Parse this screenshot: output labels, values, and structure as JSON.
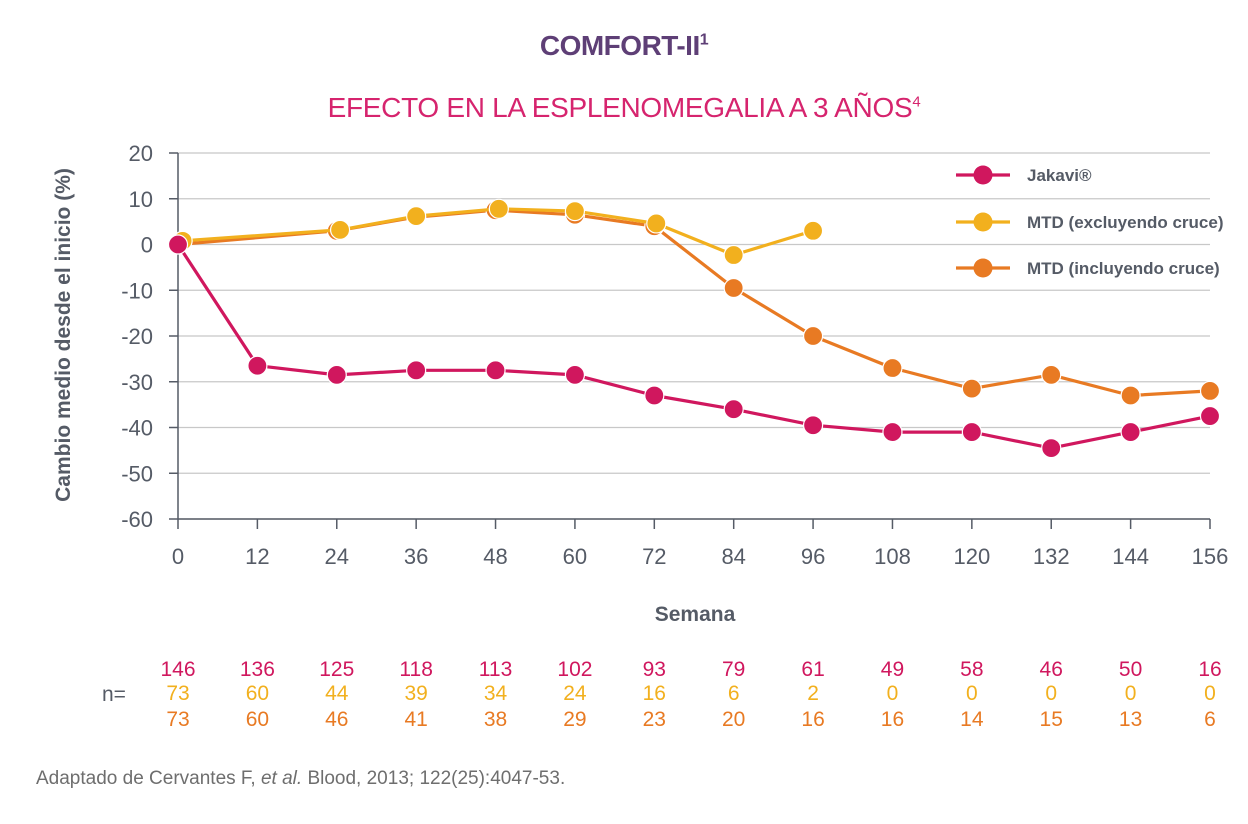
{
  "title": {
    "text": "COMFORT-II",
    "sup": "1"
  },
  "subtitle": {
    "text": "EFECTO EN LA ESPLENOMEGALIA A 3 AÑOS",
    "sup": "4"
  },
  "footnote": {
    "before": "Adaptado de Cervantes F, ",
    "italic": "et al.",
    "after": " Blood, 2013; 122(25):4047-53."
  },
  "n_label": "n=",
  "colors": {
    "jakavi": "#d0175e",
    "excl": "#f2b01e",
    "incl": "#e87a23",
    "axis": "#555b66",
    "grid": "#c8c8c8"
  },
  "chart_data": {
    "type": "line",
    "title": "EFECTO EN LA ESPLENOMEGALIA A 3 AÑOS",
    "xlabel": "Semana",
    "ylabel": "Cambio medio desde el inicio (%)",
    "ylim": [
      -60,
      20
    ],
    "xlim": [
      0,
      156
    ],
    "yticks": [
      "20",
      "10",
      "0",
      "-10",
      "-20",
      "-30",
      "-40",
      "-50",
      "-60"
    ],
    "xticks": [
      "0",
      "12",
      "24",
      "36",
      "48",
      "60",
      "72",
      "84",
      "96",
      "108",
      "120",
      "132",
      "144",
      "156"
    ],
    "legend_position": "top-right",
    "series": [
      {
        "name": "Jakavi®",
        "key": "jakavi",
        "points": [
          [
            0,
            0
          ],
          [
            12,
            -26.5
          ],
          [
            24,
            -28.5
          ],
          [
            36,
            -27.5
          ],
          [
            48,
            -27.5
          ],
          [
            60,
            -28.5
          ],
          [
            72,
            -33
          ],
          [
            84,
            -36
          ],
          [
            96,
            -39.5
          ],
          [
            108,
            -41
          ],
          [
            120,
            -41
          ],
          [
            132,
            -44.5
          ],
          [
            144,
            -41
          ],
          [
            156,
            -37.5
          ]
        ]
      },
      {
        "name": "MTD (excluyendo cruce)",
        "key": "excl",
        "points": [
          [
            0.7,
            0.8
          ],
          [
            24.5,
            3.2
          ],
          [
            36,
            6.2
          ],
          [
            48.5,
            7.8
          ],
          [
            60,
            7.3
          ],
          [
            72.3,
            4.6
          ],
          [
            84,
            -2.3
          ],
          [
            96,
            3
          ]
        ]
      },
      {
        "name": "MTD (incluyendo cruce)",
        "key": "incl",
        "points": [
          [
            0,
            0
          ],
          [
            24,
            3
          ],
          [
            36,
            6
          ],
          [
            48,
            7.5
          ],
          [
            60,
            6.5
          ],
          [
            72,
            4
          ],
          [
            84,
            -9.5
          ],
          [
            96,
            -20
          ],
          [
            108,
            -27
          ],
          [
            120,
            -31.5
          ],
          [
            132,
            -28.5
          ],
          [
            144,
            -33
          ],
          [
            156,
            -32
          ]
        ]
      }
    ],
    "n_at_risk": [
      {
        "key": "jakavi",
        "values": [
          "146",
          "136",
          "125",
          "118",
          "113",
          "102",
          "93",
          "79",
          "61",
          "49",
          "58",
          "46",
          "50",
          "16"
        ]
      },
      {
        "key": "excl",
        "values": [
          "73",
          "60",
          "44",
          "39",
          "34",
          "24",
          "16",
          "6",
          "2",
          "0",
          "0",
          "0",
          "0",
          "0"
        ]
      },
      {
        "key": "incl",
        "values": [
          "73",
          "60",
          "46",
          "41",
          "38",
          "29",
          "23",
          "20",
          "16",
          "16",
          "14",
          "15",
          "13",
          "6"
        ]
      }
    ]
  }
}
